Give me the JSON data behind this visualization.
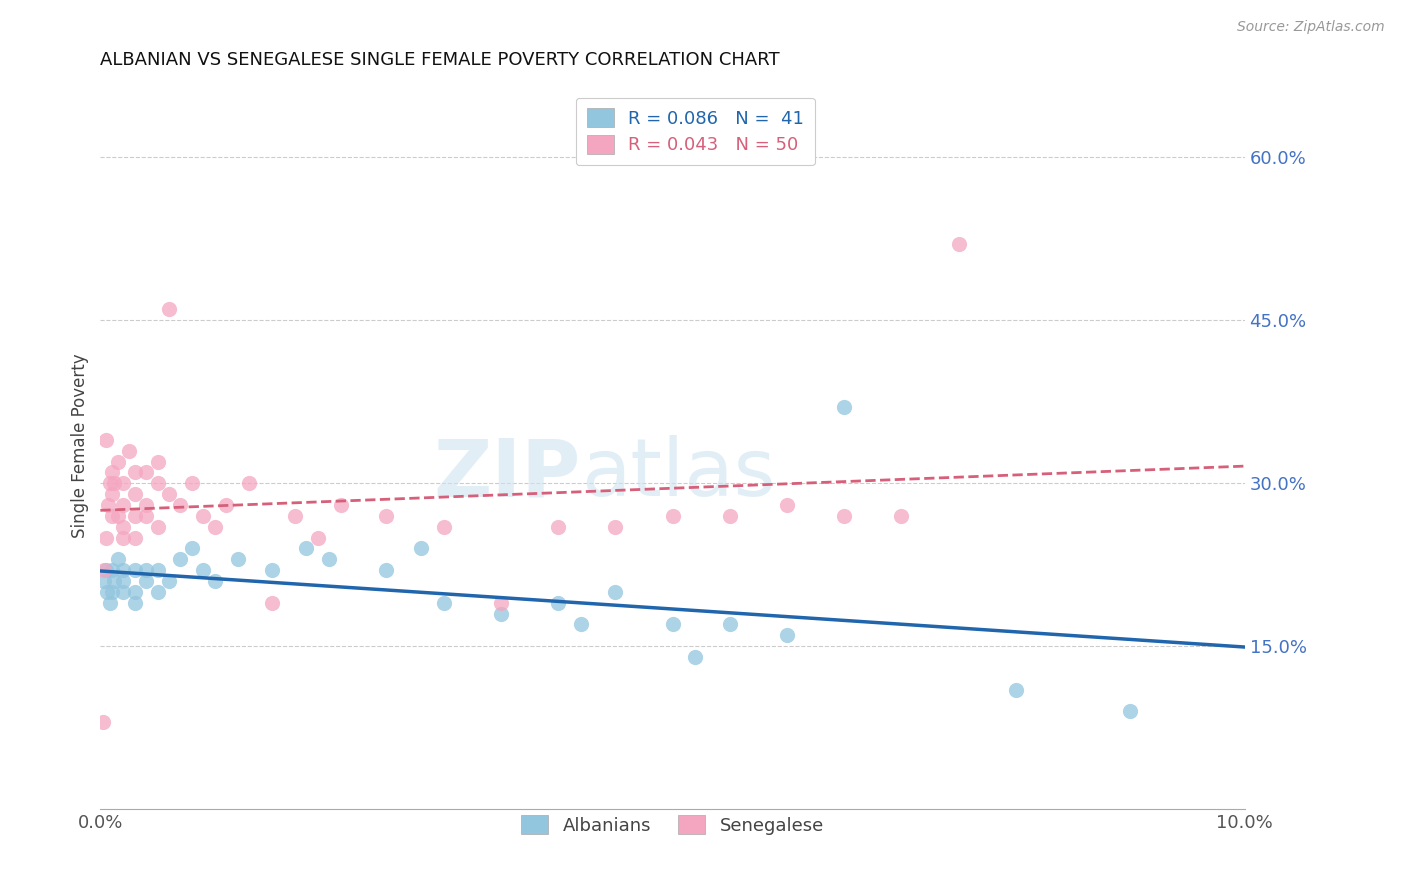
{
  "title": "ALBANIAN VS SENEGALESE SINGLE FEMALE POVERTY CORRELATION CHART",
  "source": "Source: ZipAtlas.com",
  "ylabel": "Single Female Poverty",
  "right_yticks": [
    "60.0%",
    "45.0%",
    "30.0%",
    "15.0%"
  ],
  "right_ytick_values": [
    0.6,
    0.45,
    0.3,
    0.15
  ],
  "legend_albanian_r": "R = 0.086",
  "legend_albanian_n": "N =  41",
  "legend_senegalese_r": "R = 0.043",
  "legend_senegalese_n": "N = 50",
  "albanian_color": "#92c5de",
  "senegalese_color": "#f4a6c0",
  "albanian_line_color": "#2166ac",
  "senegalese_line_color": "#d6607a",
  "albanian_x": [
    0.0003,
    0.0005,
    0.0006,
    0.0008,
    0.001,
    0.001,
    0.0012,
    0.0015,
    0.002,
    0.002,
    0.002,
    0.003,
    0.003,
    0.003,
    0.004,
    0.004,
    0.005,
    0.005,
    0.006,
    0.007,
    0.008,
    0.009,
    0.01,
    0.012,
    0.015,
    0.018,
    0.02,
    0.025,
    0.028,
    0.03,
    0.035,
    0.04,
    0.042,
    0.045,
    0.05,
    0.052,
    0.055,
    0.06,
    0.065,
    0.08,
    0.09
  ],
  "albanian_y": [
    0.21,
    0.22,
    0.2,
    0.19,
    0.22,
    0.2,
    0.21,
    0.23,
    0.2,
    0.22,
    0.21,
    0.22,
    0.2,
    0.19,
    0.21,
    0.22,
    0.2,
    0.22,
    0.21,
    0.23,
    0.24,
    0.22,
    0.21,
    0.23,
    0.22,
    0.24,
    0.23,
    0.22,
    0.24,
    0.19,
    0.18,
    0.19,
    0.17,
    0.2,
    0.17,
    0.14,
    0.17,
    0.16,
    0.37,
    0.11,
    0.09
  ],
  "senegalese_x": [
    0.0002,
    0.0003,
    0.0005,
    0.0005,
    0.0007,
    0.0008,
    0.001,
    0.001,
    0.001,
    0.0012,
    0.0015,
    0.0015,
    0.002,
    0.002,
    0.002,
    0.002,
    0.0025,
    0.003,
    0.003,
    0.003,
    0.003,
    0.004,
    0.004,
    0.004,
    0.005,
    0.005,
    0.005,
    0.006,
    0.006,
    0.007,
    0.008,
    0.009,
    0.01,
    0.011,
    0.013,
    0.015,
    0.017,
    0.019,
    0.021,
    0.025,
    0.03,
    0.035,
    0.04,
    0.045,
    0.05,
    0.055,
    0.06,
    0.065,
    0.07,
    0.075
  ],
  "senegalese_y": [
    0.08,
    0.22,
    0.25,
    0.34,
    0.28,
    0.3,
    0.27,
    0.29,
    0.31,
    0.3,
    0.32,
    0.27,
    0.28,
    0.3,
    0.25,
    0.26,
    0.33,
    0.27,
    0.29,
    0.31,
    0.25,
    0.28,
    0.31,
    0.27,
    0.3,
    0.32,
    0.26,
    0.29,
    0.46,
    0.28,
    0.3,
    0.27,
    0.26,
    0.28,
    0.3,
    0.19,
    0.27,
    0.25,
    0.28,
    0.27,
    0.26,
    0.19,
    0.26,
    0.26,
    0.27,
    0.27,
    0.28,
    0.27,
    0.27,
    0.52
  ],
  "xlim": [
    0.0,
    0.1
  ],
  "ylim": [
    0.0,
    0.67
  ],
  "watermark_zip": "ZIP",
  "watermark_atlas": "atlas",
  "background_color": "#ffffff",
  "grid_color": "#cccccc"
}
